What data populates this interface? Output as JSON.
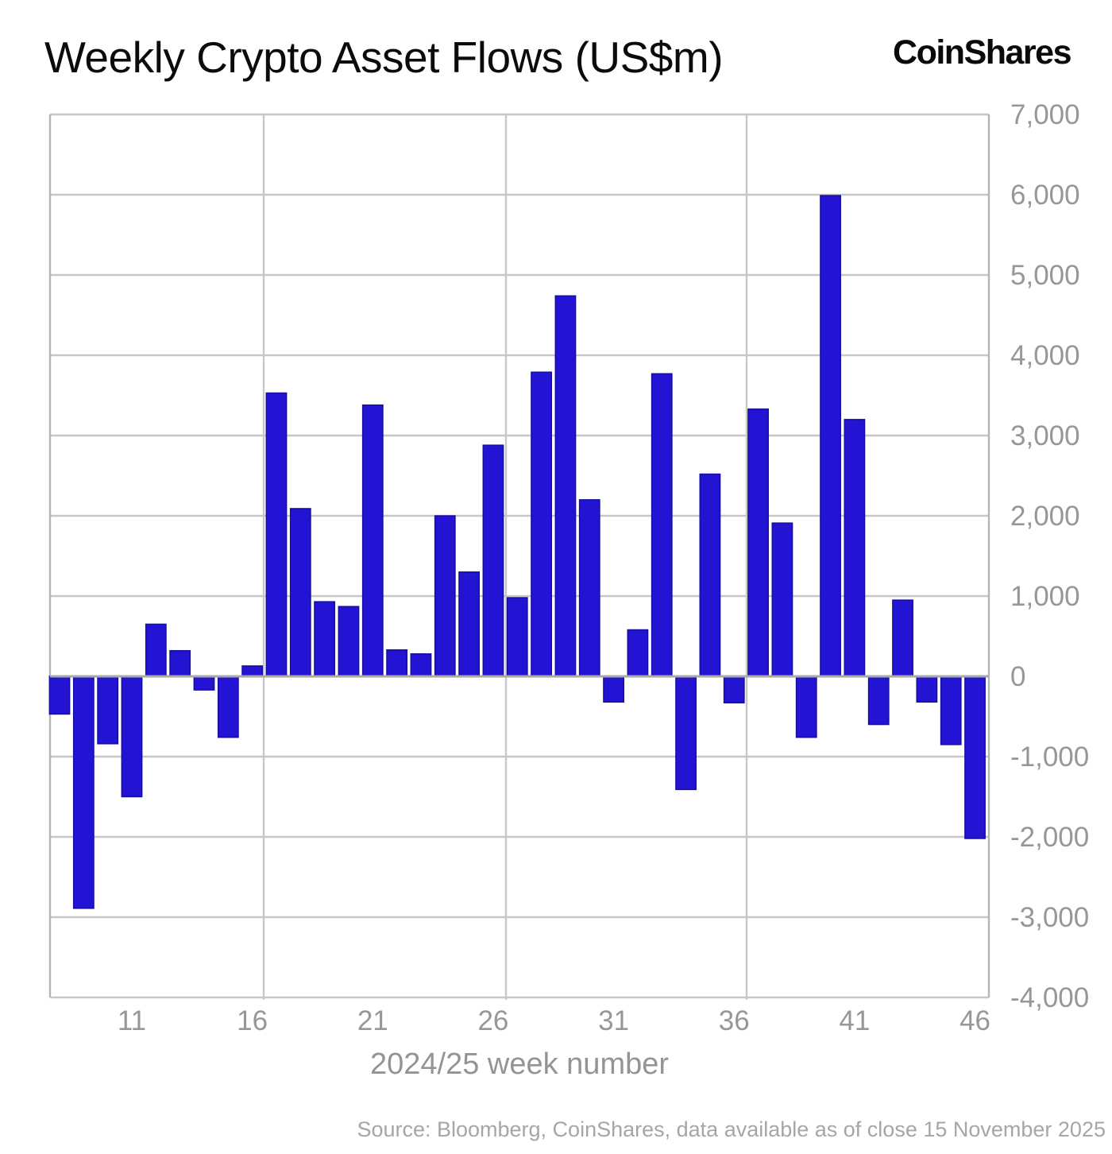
{
  "header": {
    "title": "Weekly Crypto Asset Flows (US$m)",
    "logo": "CoinShares"
  },
  "footer": {
    "source": "Source: Bloomberg, CoinShares, data available as of close 15 November 2025"
  },
  "chart_data": {
    "type": "bar",
    "title": "Weekly Crypto Asset Flows (US$m)",
    "xlabel": "2024/25 week number",
    "ylabel": "",
    "x": [
      8,
      9,
      10,
      11,
      12,
      13,
      14,
      15,
      16,
      17,
      18,
      19,
      20,
      21,
      22,
      23,
      24,
      25,
      26,
      27,
      28,
      29,
      30,
      31,
      32,
      33,
      34,
      35,
      36,
      37,
      38,
      39,
      40,
      41,
      42,
      43,
      44,
      45,
      46
    ],
    "values": [
      -470,
      -2890,
      -840,
      -1500,
      650,
      320,
      -170,
      -760,
      130,
      3530,
      2090,
      930,
      870,
      3380,
      330,
      280,
      2000,
      1300,
      2880,
      980,
      3790,
      4740,
      2200,
      -320,
      580,
      3770,
      -1410,
      2520,
      -330,
      3330,
      1910,
      -760,
      5990,
      3200,
      -600,
      950,
      -320,
      -850,
      -2020
    ],
    "x_ticks": [
      11,
      16,
      21,
      26,
      31,
      36,
      41,
      46
    ],
    "y_ticks": [
      {
        "value": 7000,
        "label": "7,000"
      },
      {
        "value": 6000,
        "label": "6,000"
      },
      {
        "value": 5000,
        "label": "5,000"
      },
      {
        "value": 4000,
        "label": "4,000"
      },
      {
        "value": 3000,
        "label": "3,000"
      },
      {
        "value": 2000,
        "label": "2,000"
      },
      {
        "value": 1000,
        "label": "1,000"
      },
      {
        "value": 0,
        "label": "0"
      },
      {
        "value": -1000,
        "label": "-1,000"
      },
      {
        "value": -2000,
        "label": "-2,000"
      },
      {
        "value": -3000,
        "label": "-3,000"
      },
      {
        "value": -4000,
        "label": "-4,000"
      }
    ],
    "ylim": [
      -4000,
      7000
    ],
    "grid": true,
    "legend_position": "none",
    "colors": {
      "bar_fill": "#2214d2",
      "bar_stroke": "#150da0",
      "grid": "#c7c7c7",
      "zero_axis": "#a9a9a9",
      "border": "#b5b5b5",
      "tick_label": "#979797"
    }
  }
}
